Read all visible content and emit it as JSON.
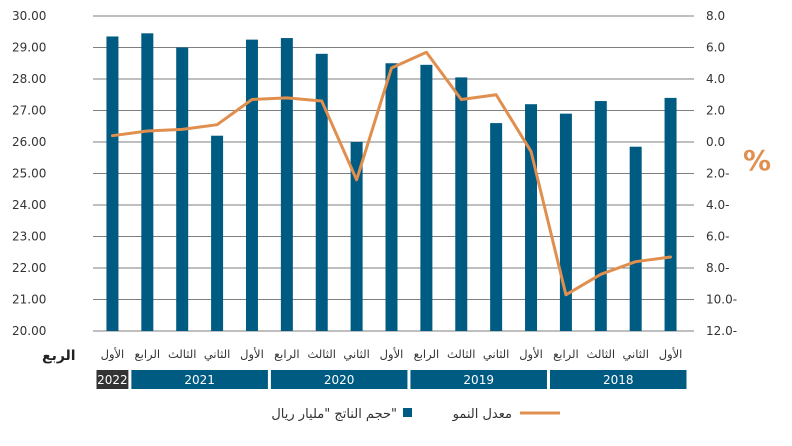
{
  "chart_data": {
    "type": "bar",
    "xlabel": "الربع",
    "right_axis_unit": "%",
    "categories": [
      "الأول",
      "الرابع",
      "الثالث",
      "الثاني",
      "الأول",
      "الرابع",
      "الثالث",
      "الثاني",
      "الأول",
      "الرابع",
      "الثالث",
      "الثاني",
      "الأول",
      "الرابع",
      "الثالث",
      "الثاني",
      "الأول"
    ],
    "years": [
      {
        "label": "2022",
        "quarters": 1,
        "color": "#333333"
      },
      {
        "label": "2021",
        "quarters": 4,
        "color": "#005b82"
      },
      {
        "label": "2020",
        "quarters": 4,
        "color": "#005b82"
      },
      {
        "label": "2019",
        "quarters": 4,
        "color": "#005b82"
      },
      {
        "label": "2018",
        "quarters": 4,
        "color": "#005b82"
      }
    ],
    "series": [
      {
        "name": "حجم الناتج \"مليار ريال\"",
        "kind": "bar",
        "axis": "left",
        "color": "#005b82",
        "values": [
          29.35,
          29.45,
          29.0,
          26.2,
          29.25,
          29.3,
          28.8,
          26.0,
          28.5,
          28.45,
          28.05,
          26.6,
          27.2,
          26.9,
          27.3,
          25.85,
          27.4
        ]
      },
      {
        "name": "معدل النمو",
        "kind": "line",
        "axis": "right",
        "color": "#e08f4f",
        "values": [
          0.4,
          0.7,
          0.8,
          1.1,
          2.7,
          2.8,
          2.6,
          -2.4,
          4.7,
          5.7,
          2.7,
          3.0,
          -0.6,
          -9.7,
          -8.4,
          -7.6,
          -7.3
        ]
      }
    ],
    "ylim_left": [
      20,
      30
    ],
    "yticks_left": [
      "30.00",
      "29.00",
      "28.00",
      "27.00",
      "26.00",
      "25.00",
      "24.00",
      "23.00",
      "22.00",
      "21.00",
      "20.00"
    ],
    "ylim_right": [
      -12,
      8
    ],
    "yticks_right": [
      "8.0",
      "6.0",
      "4.0",
      "2.0",
      "0.0",
      "2.0-",
      "4.0-",
      "6.0-",
      "8.0-",
      "10.0-",
      "12.0-"
    ],
    "grid": "horizontal",
    "legend_position": "bottom"
  }
}
